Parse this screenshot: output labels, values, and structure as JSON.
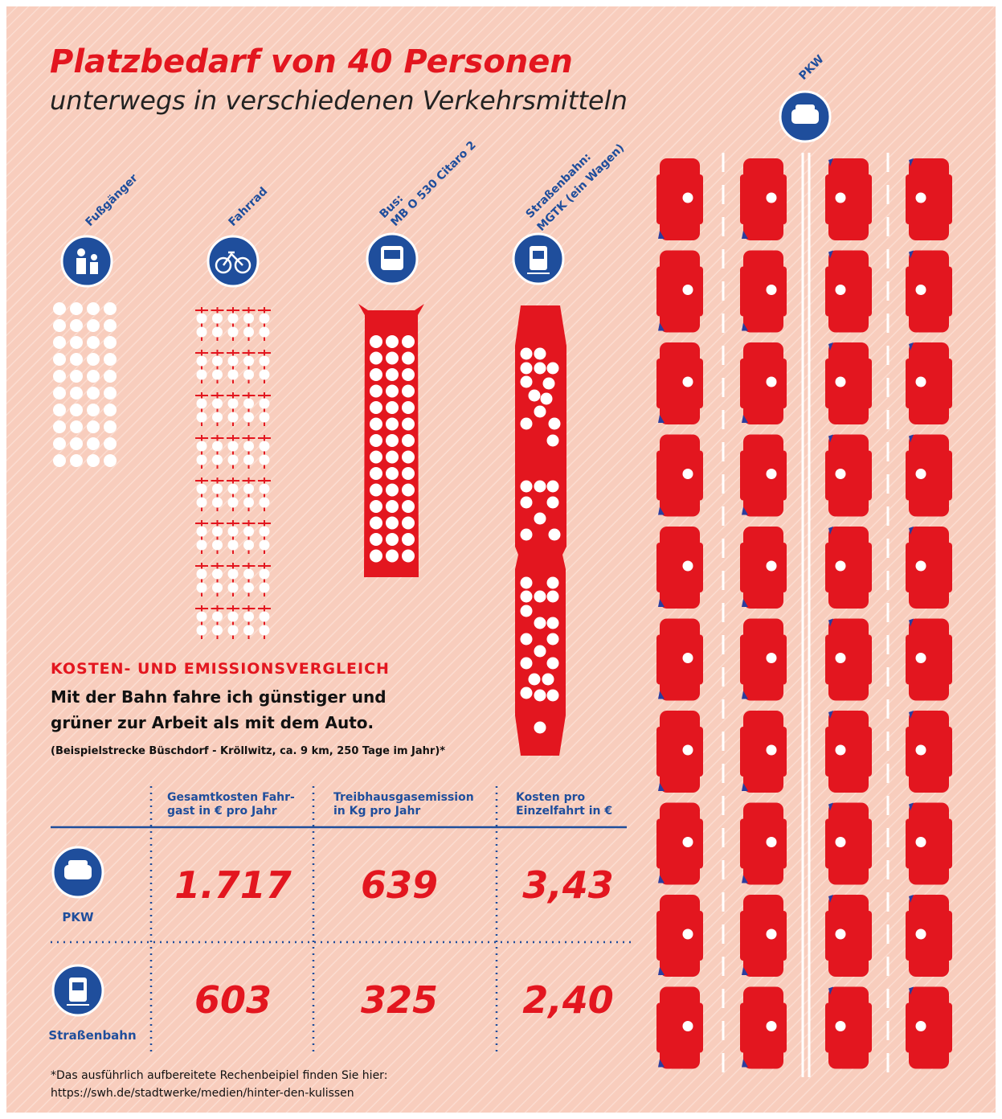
{
  "header": {
    "title": "Platzbedarf von 40 Personen",
    "subtitle": "unterwegs in verschiedenen Verkehrsmitteln"
  },
  "modes": [
    {
      "lines": [
        "Fußgänger"
      ]
    },
    {
      "lines": [
        "Fahrrad"
      ]
    },
    {
      "lines": [
        "Bus:",
        "MB O 530 Citaro 2"
      ]
    },
    {
      "lines": [
        "Straßenbahn:",
        "MGTK (ein Wagen)"
      ]
    },
    {
      "lines": [
        "PKW"
      ]
    }
  ],
  "comparison": {
    "heading": "KOSTEN- UND EMISSIONSVERGLEICH",
    "lead": [
      "Mit der Bahn fahre ich günstiger und",
      "grüner zur Arbeit als mit dem Auto."
    ],
    "note": "(Beispielstrecke Büschdorf - Kröllwitz, ca. 9 km, 250 Tage im Jahr)*",
    "columns": [
      [
        "Gesamtkosten Fahr-",
        "gast in € pro Jahr"
      ],
      [
        "Treibhausgasemission",
        "in Kg pro Jahr"
      ],
      [
        "Kosten pro",
        "Einzelfahrt in €"
      ]
    ],
    "rows": [
      {
        "label": "PKW",
        "values": [
          "1.717",
          "639",
          "3,43"
        ]
      },
      {
        "label": "Straßenbahn",
        "values": [
          "603",
          "325",
          "2,40"
        ]
      }
    ]
  },
  "footnote": [
    "*Das ausführlich aufbereitete Rechenbeipiel finden Sie hier:",
    "https://swh.de/stadtwerke/medien/hinter-den-kulissen"
  ]
}
